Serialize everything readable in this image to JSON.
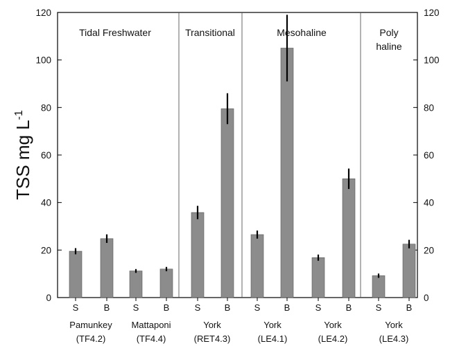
{
  "chart_data": {
    "type": "bar",
    "ylabel": "TSS  mg L",
    "ylabel_superscript": "-1",
    "ylim": [
      0,
      120
    ],
    "yticks": [
      0,
      20,
      40,
      60,
      80,
      100,
      120
    ],
    "right_axis_ticks": true,
    "grid": false,
    "bar_color": "#8c8c8c",
    "categories": [
      "S",
      "B",
      "S",
      "B",
      "S",
      "B",
      "S",
      "B",
      "S",
      "B",
      "S",
      "B"
    ],
    "values": [
      19.5,
      24.8,
      11.2,
      12.0,
      35.8,
      79.5,
      26.5,
      105.0,
      16.8,
      50.0,
      9.2,
      22.5
    ],
    "error": [
      1.3,
      1.8,
      0.8,
      0.9,
      2.8,
      6.5,
      1.7,
      14.0,
      1.3,
      4.3,
      0.9,
      1.8
    ],
    "stations": [
      {
        "river": "Pamunkey",
        "code": "(TF4.2)"
      },
      {
        "river": "Mattaponi",
        "code": "(TF4.4)"
      },
      {
        "river": "York",
        "code": "(RET4.3)"
      },
      {
        "river": "York",
        "code": "(LE4.1)"
      },
      {
        "river": "York",
        "code": "(LE4.2)"
      },
      {
        "river": "York",
        "code": "(LE4.3)"
      }
    ],
    "regions": [
      {
        "lines": [
          "Tidal Freshwater"
        ]
      },
      {
        "lines": [
          "Transitional"
        ]
      },
      {
        "lines": [
          "Mesohaline"
        ]
      },
      {
        "lines": [
          "Poly",
          "haline"
        ]
      }
    ]
  }
}
